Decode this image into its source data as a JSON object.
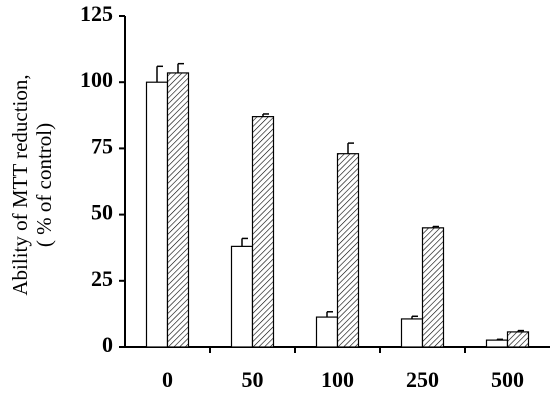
{
  "chart_data": {
    "type": "bar",
    "ylabel": [
      "Ability of MTT reduction,",
      "( % of control)"
    ],
    "categories": [
      "0",
      "50",
      "100",
      "250",
      "500"
    ],
    "series": [
      {
        "color": "#ffffff",
        "hatch": false,
        "values": [
          100,
          38,
          11.3,
          10.6,
          2.6
        ],
        "errors": [
          6,
          3,
          2,
          1,
          0.3
        ]
      },
      {
        "color": "#ffffff",
        "hatch": true,
        "values": [
          103.5,
          87,
          73,
          45,
          5.7
        ],
        "errors": [
          3.5,
          1,
          4,
          0.5,
          0.5
        ]
      }
    ],
    "ylim": [
      0,
      125
    ],
    "yticks": [
      0,
      25,
      50,
      75,
      100,
      125
    ],
    "grid": false
  }
}
